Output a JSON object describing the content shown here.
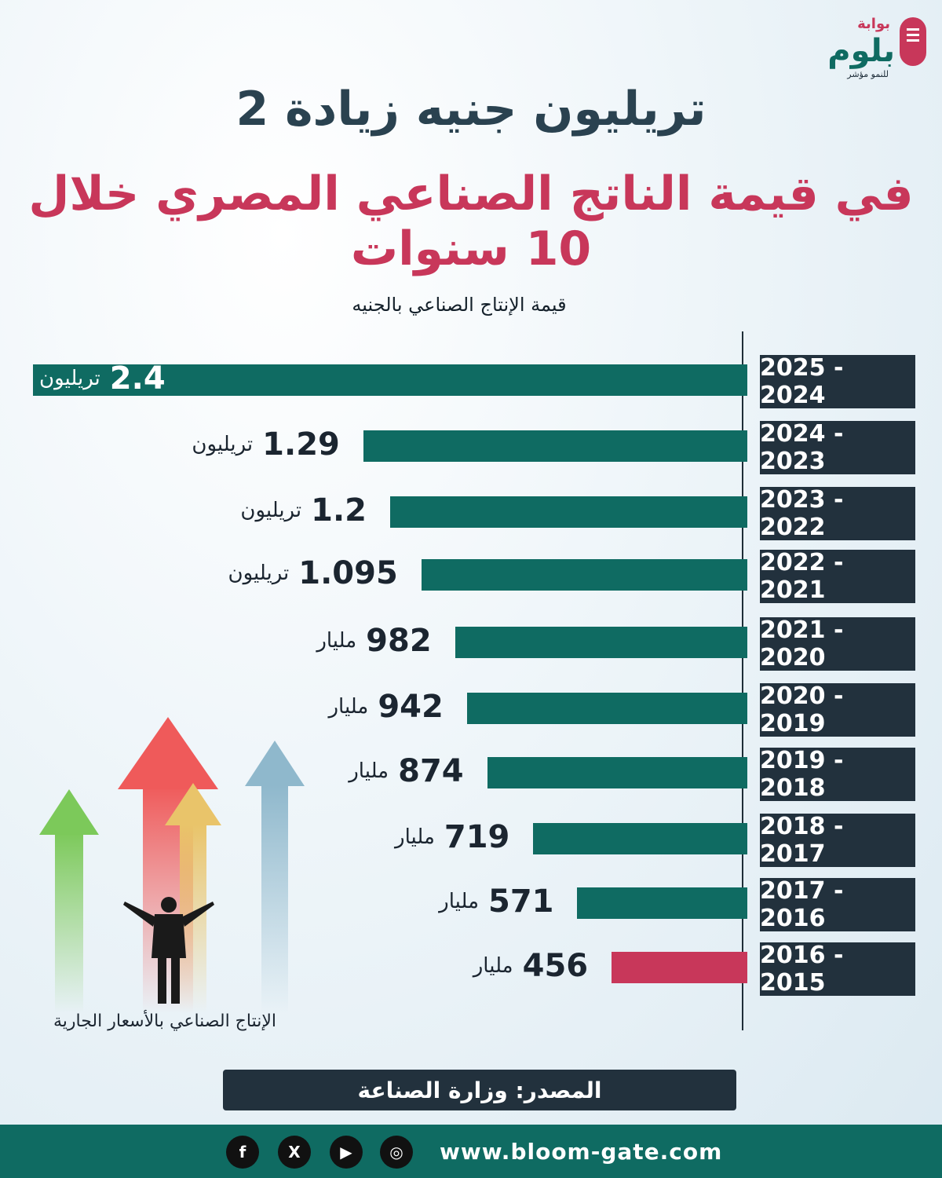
{
  "brand": {
    "prefix": "بوابة",
    "name": "بلوم",
    "tagline": "للنمو مؤشر"
  },
  "title_line1": "2 تريليون جنيه زيادة",
  "title_line2": "في قيمة الناتج الصناعي المصري خلال 10 سنوات",
  "chart_data": {
    "type": "bar",
    "orientation": "horizontal",
    "title": "قيمة الإنتاج الصناعي بالجنيه",
    "xlim": [
      0,
      2400
    ],
    "categories": [
      "2025 - 2024",
      "2024 - 2023",
      "2023 - 2022",
      "2022 - 2021",
      "2021 - 2020",
      "2020 - 2019",
      "2019 - 2018",
      "2018 - 2017",
      "2017 - 2016",
      "2016 - 2015"
    ],
    "values_billion": [
      2400,
      1290,
      1200,
      1095,
      982,
      942,
      874,
      719,
      571,
      456
    ],
    "labels": [
      {
        "num": "2.4",
        "unit": "تريليون"
      },
      {
        "num": "1.29",
        "unit": "تريليون"
      },
      {
        "num": "1.2",
        "unit": "تريليون"
      },
      {
        "num": "1.095",
        "unit": "تريليون"
      },
      {
        "num": "982",
        "unit": "مليار"
      },
      {
        "num": "942",
        "unit": "مليار"
      },
      {
        "num": "874",
        "unit": "مليار"
      },
      {
        "num": "719",
        "unit": "مليار"
      },
      {
        "num": "571",
        "unit": "مليار"
      },
      {
        "num": "456",
        "unit": "مليار"
      }
    ],
    "colors": {
      "bar": "#0f6b62",
      "highlight": "#c8375a"
    }
  },
  "illustration_caption": "الإنتاج الصناعي بالأسعار الجارية",
  "source": "المصدر: وزارة الصناعة",
  "footer": {
    "website": "www.bloom-gate.com",
    "socials": [
      {
        "icon": "facebook-icon",
        "glyph": "f"
      },
      {
        "icon": "x-icon",
        "glyph": "X"
      },
      {
        "icon": "youtube-icon",
        "glyph": "▶"
      },
      {
        "icon": "instagram-icon",
        "glyph": "◎"
      }
    ]
  }
}
